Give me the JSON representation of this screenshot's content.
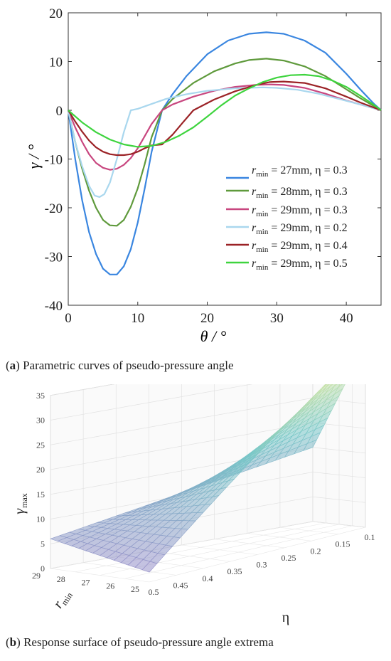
{
  "caption_a": {
    "open": "(",
    "letter": "a",
    "close": ")",
    "text": " Parametric curves of pseudo-pressure angle"
  },
  "caption_b": {
    "open": "(",
    "letter": "b",
    "close": ")",
    "text": " Response surface of pseudo-pressure angle extrema"
  },
  "chart_data": [
    {
      "type": "line",
      "xlabel": "θ / °",
      "ylabel": "γ / °",
      "xlim": [
        0,
        45
      ],
      "ylim": [
        -40,
        20
      ],
      "xticks": [
        0,
        10,
        20,
        30,
        40
      ],
      "yticks": [
        20,
        10,
        0,
        -10,
        -20,
        -30,
        -40
      ],
      "grid": false,
      "legend_position": "lower-right",
      "series": [
        {
          "name": "r_min = 27mm, η = 0.3",
          "label_main": "r",
          "label_sub": "min",
          "label_rest": " = 27mm, η = 0.3",
          "color": "#3a86e0",
          "x": [
            0,
            1,
            2,
            3,
            4,
            5,
            6,
            7,
            8,
            9,
            10,
            11,
            12,
            13.5,
            15,
            17,
            20,
            23,
            26,
            28.5,
            31,
            34,
            37,
            40,
            42,
            44,
            45
          ],
          "y": [
            0,
            -10,
            -18.5,
            -25,
            -29.5,
            -32.5,
            -33.7,
            -33.7,
            -32,
            -28.5,
            -23,
            -16,
            -8.5,
            0,
            3.3,
            7,
            11.5,
            14.3,
            15.7,
            16,
            15.7,
            14.3,
            11.8,
            7.5,
            4.3,
            1.3,
            0
          ]
        },
        {
          "name": "r_min = 28mm, η = 0.3",
          "label_main": "r",
          "label_sub": "min",
          "label_rest": " = 28mm, η = 0.3",
          "color": "#5f9a3c",
          "x": [
            0,
            1,
            2,
            3,
            4,
            5,
            6,
            7,
            8,
            9,
            10,
            11,
            12,
            13.5,
            15,
            18,
            21,
            24,
            26,
            28.5,
            31,
            34,
            37,
            40,
            42,
            45
          ],
          "y": [
            0,
            -6.5,
            -12,
            -16.5,
            -20,
            -22.5,
            -23.6,
            -23.7,
            -22.5,
            -19.8,
            -16,
            -11,
            -5.5,
            0,
            2.3,
            5.6,
            8,
            9.6,
            10.3,
            10.6,
            10.2,
            9,
            7,
            4.3,
            2.5,
            0
          ]
        },
        {
          "name": "r_min = 29mm, η = 0.3",
          "label_main": "r",
          "label_sub": "min",
          "label_rest": " = 29mm, η = 0.3",
          "color": "#c8467f",
          "x": [
            0,
            1,
            2,
            3,
            4,
            5,
            6,
            7,
            8,
            9,
            10,
            11,
            12,
            13.5,
            15,
            18,
            21,
            24,
            27,
            29,
            31,
            34,
            37,
            40,
            42,
            45
          ],
          "y": [
            0,
            -3.5,
            -6.5,
            -9,
            -10.8,
            -11.8,
            -12.2,
            -12,
            -11.2,
            -9.8,
            -7.8,
            -5.3,
            -2.8,
            0,
            1.2,
            2.8,
            4,
            4.8,
            5.2,
            5.3,
            5.2,
            4.6,
            3.4,
            2,
            1.2,
            0
          ]
        },
        {
          "name": "r_min = 29mm, η = 0.2",
          "label_main": "r",
          "label_sub": "min",
          "label_rest": " = 29mm, η = 0.2",
          "color": "#a9d7ee",
          "x": [
            0,
            1,
            2,
            3,
            3.8,
            4.5,
            5.2,
            6,
            7,
            8,
            9,
            10,
            12,
            14,
            17,
            20,
            24,
            28,
            30,
            33,
            36,
            39,
            42,
            45
          ],
          "y": [
            0,
            -6.5,
            -11.5,
            -15.5,
            -17.5,
            -17.8,
            -17.2,
            -14.8,
            -10,
            -4.5,
            0,
            0.3,
            1.3,
            2.3,
            3.3,
            4,
            4.5,
            4.7,
            4.6,
            4.2,
            3.4,
            2.3,
            1.2,
            0
          ]
        },
        {
          "name": "r_min = 29mm, η = 0.4",
          "label_main": "r",
          "label_sub": "min",
          "label_rest": " = 29mm, η = 0.4",
          "color": "#9b2226",
          "x": [
            0,
            1,
            2,
            3,
            4,
            5,
            6,
            7,
            8,
            9,
            10,
            11,
            12,
            13.5,
            15,
            16.5,
            18,
            21,
            24,
            27,
            29,
            31,
            34,
            37,
            40,
            42,
            45
          ],
          "y": [
            0,
            -2.3,
            -4.4,
            -6.2,
            -7.6,
            -8.5,
            -9,
            -9.2,
            -9.2,
            -9,
            -8.5,
            -7.8,
            -7.2,
            -7,
            -5,
            -2.5,
            0,
            2.2,
            3.9,
            5.2,
            5.8,
            5.9,
            5.6,
            4.5,
            2.8,
            1.6,
            0
          ]
        },
        {
          "name": "r_min = 29mm, η = 0.5",
          "label_main": "r",
          "label_sub": "min",
          "label_rest": " = 29mm, η = 0.5",
          "color": "#3ed43e",
          "x": [
            0,
            2,
            4,
            6,
            8,
            10,
            12,
            14,
            16,
            18,
            20,
            22,
            24,
            26,
            28,
            30,
            32,
            34,
            36,
            38,
            40,
            42,
            44,
            45
          ],
          "y": [
            0,
            -2.5,
            -4.5,
            -6,
            -7,
            -7.5,
            -7.3,
            -6.5,
            -5.2,
            -3.5,
            -1.3,
            1,
            3,
            4.5,
            5.8,
            6.7,
            7.2,
            7.3,
            7,
            6.1,
            4.8,
            3,
            1.1,
            0
          ]
        }
      ]
    },
    {
      "type": "surface",
      "zlabel": "γ",
      "zlabel_sub": "max",
      "xlabel": "η",
      "ylabel": "r",
      "ylabel_sub": "min",
      "zlim": [
        0,
        35
      ],
      "zticks": [
        0,
        5,
        10,
        15,
        20,
        25,
        30,
        35
      ],
      "xticks": [
        "0.5",
        "0.45",
        "0.4",
        "0.35",
        "0.3",
        "0.25",
        "0.2",
        "0.15",
        "0.1"
      ],
      "yticks": [
        "29",
        "28",
        "27",
        "26",
        "25"
      ],
      "eta_range": [
        0.1,
        0.5
      ],
      "rmin_range": [
        25,
        29
      ],
      "corner_values": [
        {
          "eta": 0.1,
          "rmin": 25,
          "gamma_max": 37
        },
        {
          "eta": 0.1,
          "rmin": 29,
          "gamma_max": 15
        },
        {
          "eta": 0.5,
          "rmin": 25,
          "gamma_max": 2
        },
        {
          "eta": 0.5,
          "rmin": 29,
          "gamma_max": 6
        }
      ]
    }
  ]
}
